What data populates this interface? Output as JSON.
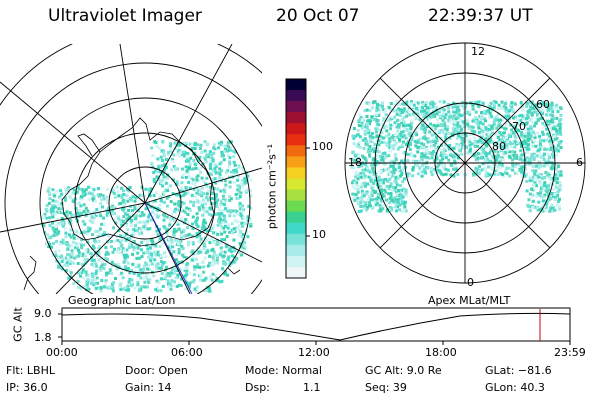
{
  "header": {
    "instrument": "Ultraviolet Imager",
    "date": "20 Oct 07",
    "time": "22:39:37 UT"
  },
  "left_map": {
    "caption": "Geographic Lat/Lon"
  },
  "right_map": {
    "caption": "Apex MLat/MLT",
    "mlt_labels": [
      "12",
      "18",
      "6",
      "0"
    ],
    "mlat_labels": [
      "60",
      "70",
      "80"
    ]
  },
  "colorbar": {
    "unit_label": "photon cm⁻²s⁻¹",
    "ticks": [
      "100",
      "10"
    ],
    "colors": [
      "#000033",
      "#3a0a55",
      "#6e1050",
      "#9e1030",
      "#cc1818",
      "#e83010",
      "#f06a10",
      "#f7a015",
      "#f5d020",
      "#d8e830",
      "#a8e040",
      "#6ada50",
      "#3ad090",
      "#40d8c8",
      "#78e2d8",
      "#a8ecea",
      "#d0f3f3",
      "#eef6f6"
    ]
  },
  "timeline": {
    "axis_label": "GC Alt",
    "y_ticks": [
      "9.0",
      "1.8"
    ],
    "x_ticks": [
      "00:00",
      "06:00",
      "12:00",
      "18:00",
      "23:59"
    ],
    "marker_color": "#cc0000"
  },
  "status": {
    "flt": "Flt: LBHL",
    "ip": "IP: 36.0",
    "door": "Door: Open",
    "gain": "Gain: 14",
    "mode": "Mode: Normal",
    "dsp": "Dsp:",
    "dsp_value": "1.1",
    "gc_alt": "GC Alt: 9.0 Re",
    "seq": "Seq: 39",
    "glat": "GLat: −81.6",
    "glon": "GLon:  40.3"
  }
}
